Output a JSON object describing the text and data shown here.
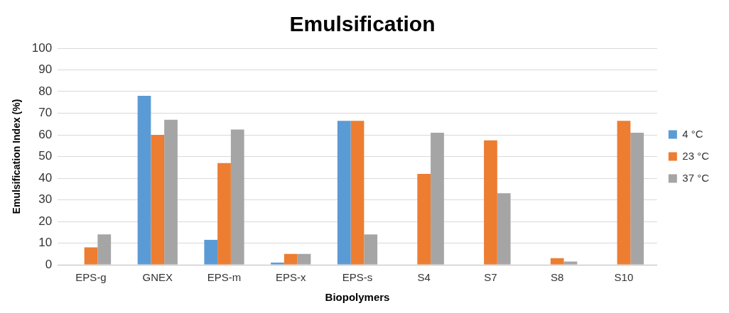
{
  "chart_data": {
    "type": "bar",
    "title": "Emulsification",
    "xlabel": "Biopolymers",
    "ylabel": "Emulsification Index (%)",
    "categories": [
      "EPS-g",
      "GNEX",
      "EPS-m",
      "EPS-x",
      "EPS-s",
      "S4",
      "S7",
      "S8",
      "S10"
    ],
    "series": [
      {
        "name": "4 °C",
        "color": "#5b9bd5",
        "values": [
          null,
          78,
          11.5,
          1,
          66.5,
          null,
          null,
          null,
          null
        ]
      },
      {
        "name": "23 °C",
        "color": "#ed7d31",
        "values": [
          8,
          60,
          47,
          5,
          66.5,
          42,
          57.5,
          3,
          66.5
        ]
      },
      {
        "name": "37 °C",
        "color": "#a5a5a5",
        "values": [
          14,
          67,
          62.5,
          5,
          14,
          61,
          33,
          1.5,
          61
        ]
      }
    ],
    "ylim": [
      0,
      100
    ],
    "yticks": [
      0,
      10,
      20,
      30,
      40,
      50,
      60,
      70,
      80,
      90,
      100
    ],
    "grid": "y",
    "legend": "right"
  }
}
